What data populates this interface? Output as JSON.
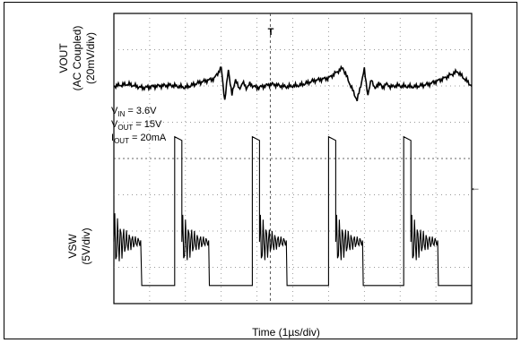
{
  "chart_data": {
    "type": "line",
    "x_label": "Time (1µs/div)",
    "grid": true,
    "divisions": {
      "x": 10,
      "y": 8
    },
    "series": [
      {
        "name": "VOUT",
        "label_lines": [
          "VOUT",
          "(AC Coupled)",
          "(20mV/div)"
        ],
        "x": [
          0.0,
          0.4,
          0.8,
          1.2,
          1.6,
          2.0,
          2.4,
          2.8,
          3.0,
          3.1,
          3.2,
          3.3,
          3.4,
          3.5,
          3.6,
          3.7,
          3.8,
          3.9,
          4.0,
          4.4,
          4.8,
          5.2,
          5.6,
          6.0,
          6.4,
          6.8,
          7.0,
          7.1,
          7.2,
          7.3,
          7.4,
          7.5,
          7.6,
          7.7,
          7.8,
          7.9,
          8.0,
          8.4,
          8.8,
          9.2,
          9.6,
          10.0
        ],
        "y": [
          6.0,
          6.05,
          5.95,
          6.0,
          6.02,
          5.96,
          6.1,
          6.2,
          6.5,
          5.6,
          6.45,
          5.75,
          6.2,
          5.9,
          6.1,
          5.95,
          6.05,
          6.0,
          5.95,
          6.05,
          5.98,
          6.02,
          6.15,
          6.22,
          6.5,
          5.6,
          6.45,
          5.75,
          6.2,
          5.9,
          6.1,
          5.95,
          6.05,
          6.0,
          5.98,
          6.02,
          6.0,
          5.98,
          6.05,
          6.2,
          6.4,
          6.0
        ]
      },
      {
        "name": "VSW",
        "label_lines": [
          "VSW",
          "(5V/div)"
        ],
        "switch_periods_div": [
          0,
          4.0,
          8.0
        ],
        "high_level_div": 4.6,
        "low_level_div": 0.5,
        "period_div": 2.0
      }
    ],
    "annotations": [
      {
        "text_main": "V",
        "text_sub": "IN",
        "text_rest": " = 3.6V"
      },
      {
        "text_main": "V",
        "text_sub": "OUT",
        "text_rest": " = 15V"
      },
      {
        "text_main": "I",
        "text_sub": "OUT",
        "text_rest": " = 20mA"
      }
    ],
    "markers": {
      "trigger": "T",
      "level_arrow": "←"
    }
  }
}
